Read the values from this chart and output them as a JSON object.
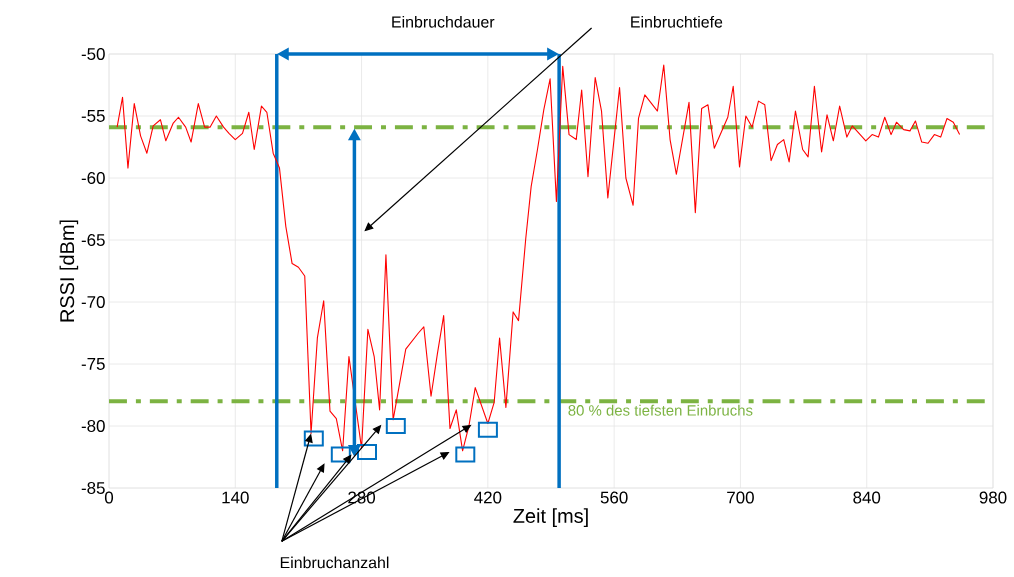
{
  "chart_data": {
    "type": "line",
    "xlabel": "Zeit [ms]",
    "ylabel": "RSSI [dBm]",
    "xlim": [
      0,
      980
    ],
    "ylim": [
      -85,
      -50
    ],
    "xticks": [
      0,
      140,
      280,
      420,
      560,
      700,
      840,
      980
    ],
    "yticks": [
      -85,
      -80,
      -75,
      -70,
      -65,
      -60,
      -55,
      -50
    ],
    "grid": true,
    "series": [
      {
        "color": "#ff0000",
        "x": [
          9,
          15,
          21,
          28,
          35,
          42,
          49,
          57,
          63,
          71,
          77,
          85,
          91,
          99,
          106,
          112,
          119,
          127,
          133,
          140,
          148,
          155,
          161,
          169,
          175,
          182,
          189,
          196,
          203,
          210,
          217,
          224,
          231,
          238,
          245,
          252,
          259,
          266,
          280,
          287,
          294,
          300,
          307,
          315,
          329,
          343,
          349,
          357,
          364,
          371,
          378,
          385,
          392,
          399,
          406,
          420,
          427,
          433,
          440,
          448,
          454,
          462,
          468,
          475,
          482,
          489,
          496,
          503,
          510,
          518,
          524,
          531,
          539,
          546,
          553,
          566,
          573,
          581,
          587,
          594,
          608,
          615,
          622,
          629,
          643,
          650,
          657,
          664,
          671,
          686,
          692,
          699,
          706,
          713,
          720,
          727,
          734,
          741,
          748,
          754,
          761,
          769,
          775,
          782,
          790,
          796,
          803,
          810,
          818,
          824,
          839,
          846,
          853,
          860,
          867,
          873,
          881,
          888,
          894,
          901,
          908,
          915,
          922,
          929,
          936,
          943
        ],
        "values": [
          -55.9,
          -53.5,
          -59.2,
          -54.0,
          -56.6,
          -58.0,
          -55.8,
          -55.3,
          -57.0,
          -55.6,
          -55.1,
          -55.9,
          -57.1,
          -54.0,
          -55.9,
          -55.9,
          -55.0,
          -55.9,
          -56.4,
          -56.9,
          -56.4,
          -54.7,
          -57.7,
          -54.2,
          -54.7,
          -58.0,
          -59.2,
          -63.9,
          -66.9,
          -67.2,
          -67.9,
          -80.6,
          -72.9,
          -69.9,
          -78.8,
          -79.4,
          -82.0,
          -74.4,
          -81.8,
          -72.2,
          -74.4,
          -78.7,
          -66.2,
          -79.5,
          -73.8,
          -72.5,
          -72.0,
          -77.6,
          -74.2,
          -71.1,
          -80.2,
          -78.7,
          -82.0,
          -80.0,
          -76.9,
          -79.8,
          -78.1,
          -72.9,
          -78.5,
          -70.8,
          -71.5,
          -64.9,
          -60.7,
          -57.7,
          -54.5,
          -52.0,
          -61.9,
          -51.0,
          -56.5,
          -56.9,
          -52.9,
          -59.9,
          -51.9,
          -54.6,
          -61.6,
          -52.7,
          -60.0,
          -62.2,
          -55.2,
          -53.3,
          -54.6,
          -50.9,
          -56.9,
          -59.7,
          -53.9,
          -62.8,
          -54.4,
          -54.1,
          -57.6,
          -55.1,
          -52.6,
          -59.1,
          -55.0,
          -55.9,
          -53.8,
          -54.1,
          -58.6,
          -57.3,
          -56.9,
          -58.7,
          -54.6,
          -57.7,
          -58.3,
          -52.6,
          -57.9,
          -54.9,
          -57.0,
          -54.2,
          -56.7,
          -55.8,
          -57.0,
          -56.5,
          -56.7,
          -55.1,
          -56.5,
          -55.5,
          -56.1,
          -56.2,
          -55.4,
          -57.1,
          -57.2,
          -56.5,
          -56.7,
          -55.2,
          -55.5,
          -56.5
        ]
      }
    ],
    "ref_lines": [
      {
        "axis": "y",
        "value": -55.9,
        "color": "#7cb342",
        "line_style": "dashdot"
      },
      {
        "axis": "y",
        "value": -78,
        "color": "#7cb342",
        "line_style": "dashdot",
        "label": "80 % des tiefsten Einbruchs"
      },
      {
        "axis": "x",
        "value": 186,
        "color": "#0070c0"
      },
      {
        "axis": "x",
        "value": 499,
        "color": "#0070c0"
      }
    ],
    "annotations": [
      "Einbruchdauer",
      "Einbruchtiefe",
      {
        "text": "Einbruchanzahl",
        "x": 224,
        "y": -80.6
      }
    ]
  }
}
